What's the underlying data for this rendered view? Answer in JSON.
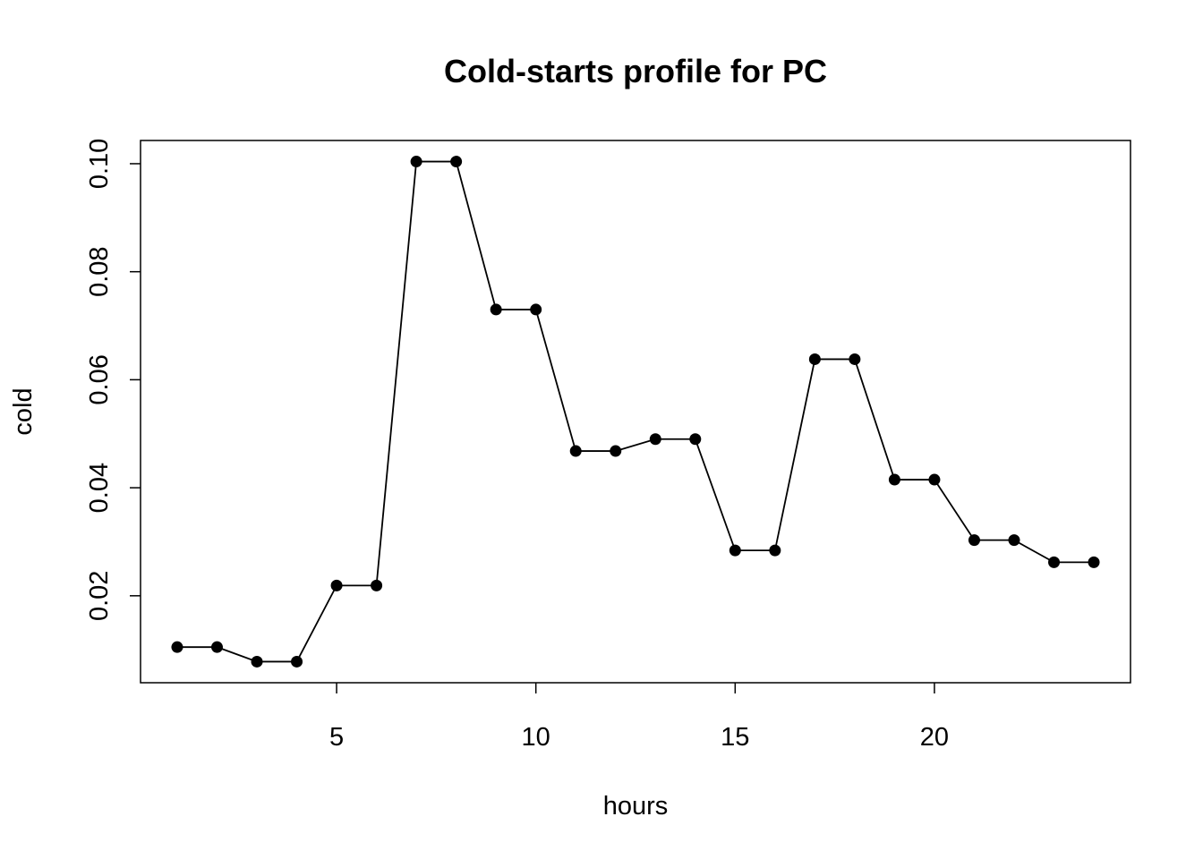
{
  "chart_data": {
    "type": "line",
    "title": "Cold-starts profile for PC",
    "xlabel": "hours",
    "ylabel": "cold",
    "x": [
      1,
      2,
      3,
      4,
      5,
      6,
      7,
      8,
      9,
      10,
      11,
      12,
      13,
      14,
      15,
      16,
      17,
      18,
      19,
      20,
      21,
      22,
      23,
      24
    ],
    "series": [
      {
        "values": [
          0.0105,
          0.0105,
          0.0078,
          0.0078,
          0.0219,
          0.0219,
          0.1004,
          0.1004,
          0.073,
          0.073,
          0.0468,
          0.0468,
          0.049,
          0.049,
          0.0284,
          0.0284,
          0.0638,
          0.0638,
          0.0415,
          0.0415,
          0.0303,
          0.0303,
          0.0262,
          0.0262
        ]
      }
    ],
    "xlim": [
      0.08,
      24.92
    ],
    "ylim": [
      0.0039,
      0.1043
    ],
    "x_ticks": [
      "5",
      "10",
      "15",
      "20"
    ],
    "y_ticks": [
      "0.02",
      "0.04",
      "0.06",
      "0.08",
      "0.10"
    ],
    "grid": false,
    "legend": "none",
    "marker": "filled-circle",
    "line_color": "#000000"
  }
}
